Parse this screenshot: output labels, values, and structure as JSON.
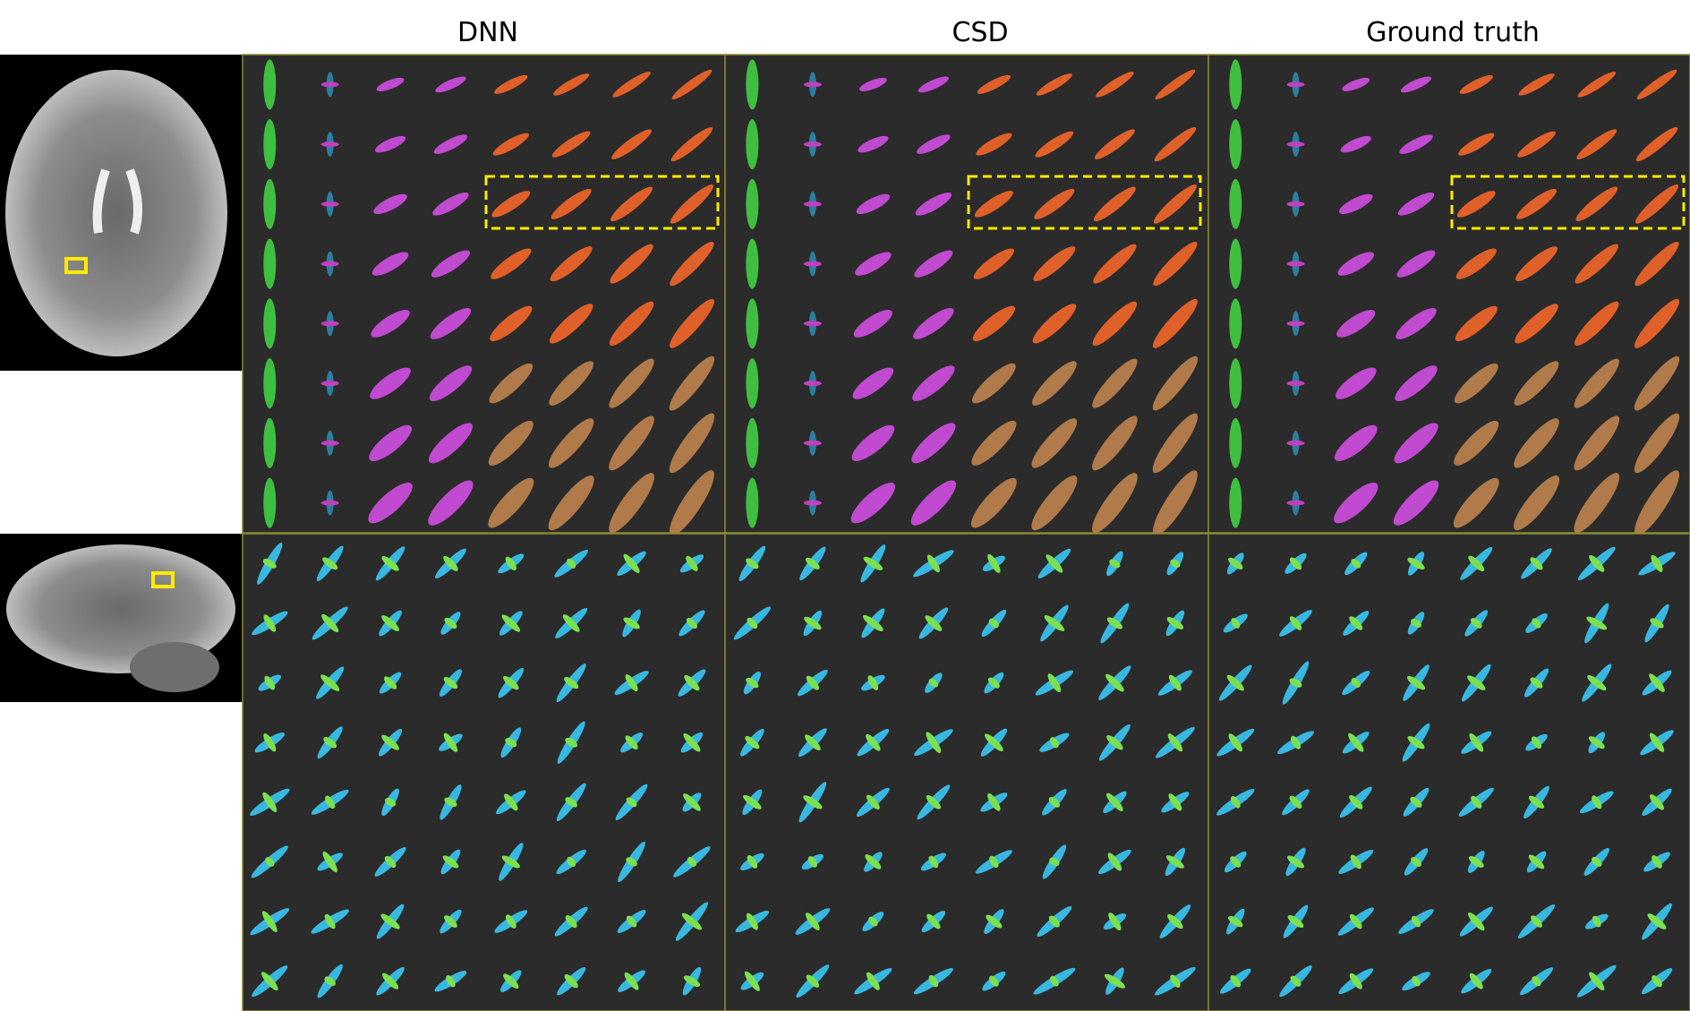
{
  "header": {
    "columns": [
      "DNN",
      "CSD",
      "Ground truth"
    ]
  }
}
